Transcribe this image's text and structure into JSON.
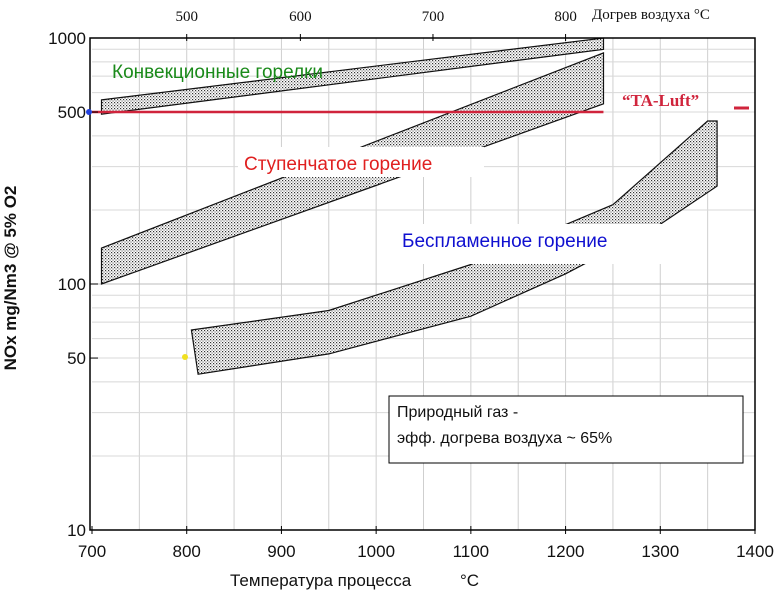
{
  "chart_data": {
    "type": "area",
    "title": "",
    "xlabel": "Температура процесса",
    "xlabel_unit": "°C",
    "ylabel": "NOx  mg/Nm3 @ 5% O2",
    "y_scale": "log",
    "xlim": [
      700,
      1400
    ],
    "ylim": [
      10,
      1000
    ],
    "x_ticks": [
      "700",
      "800",
      "900",
      "1000",
      "1100",
      "1200",
      "1300",
      "1400"
    ],
    "y_ticks": [
      {
        "value": 1000,
        "label": "1000"
      },
      {
        "value": 500,
        "label": "500"
      },
      {
        "value": 100,
        "label": "100"
      },
      {
        "value": 50,
        "label": "50"
      },
      {
        "value": 10,
        "label": "10"
      }
    ],
    "top_axis": {
      "label": "Догрев воздуха °C",
      "ticks": [
        {
          "label": "500",
          "at_process_temp": 800
        },
        {
          "label": "600",
          "at_process_temp": 920
        },
        {
          "label": "700",
          "at_process_temp": 1060
        },
        {
          "label": "800",
          "at_process_temp": 1200
        }
      ]
    },
    "grid": true,
    "series": [
      {
        "name": "Конвекционные горелки",
        "color": "#1a8a1a",
        "upper": [
          [
            710,
            560
          ],
          [
            1240,
            1000
          ]
        ],
        "lower": [
          [
            710,
            490
          ],
          [
            1240,
            900
          ]
        ]
      },
      {
        "name": "Ступенчатое горение",
        "color": "#e02020",
        "upper": [
          [
            710,
            140
          ],
          [
            1240,
            870
          ]
        ],
        "lower": [
          [
            710,
            100
          ],
          [
            1240,
            540
          ]
        ]
      },
      {
        "name": "Беспламенное горение",
        "color": "#1010d0",
        "upper": [
          [
            805,
            65
          ],
          [
            950,
            78
          ],
          [
            1100,
            120
          ],
          [
            1250,
            210
          ],
          [
            1350,
            460
          ],
          [
            1360,
            460
          ]
        ],
        "lower": [
          [
            812,
            43
          ],
          [
            950,
            52
          ],
          [
            1100,
            74
          ],
          [
            1200,
            110
          ],
          [
            1300,
            175
          ],
          [
            1360,
            250
          ]
        ]
      }
    ],
    "reference_line": {
      "name": "“TA-Luft”",
      "value": 500,
      "x_range": [
        700,
        1240
      ],
      "color": "#d0243c"
    },
    "annotation_box": {
      "line1": "Природный газ -",
      "line2": "эфф. догрева воздуха ~ 65%"
    }
  },
  "colors": {
    "convective": "#1a8a1a",
    "staged": "#e02020",
    "flameless": "#1010d0",
    "ta_luft": "#d0243c"
  }
}
